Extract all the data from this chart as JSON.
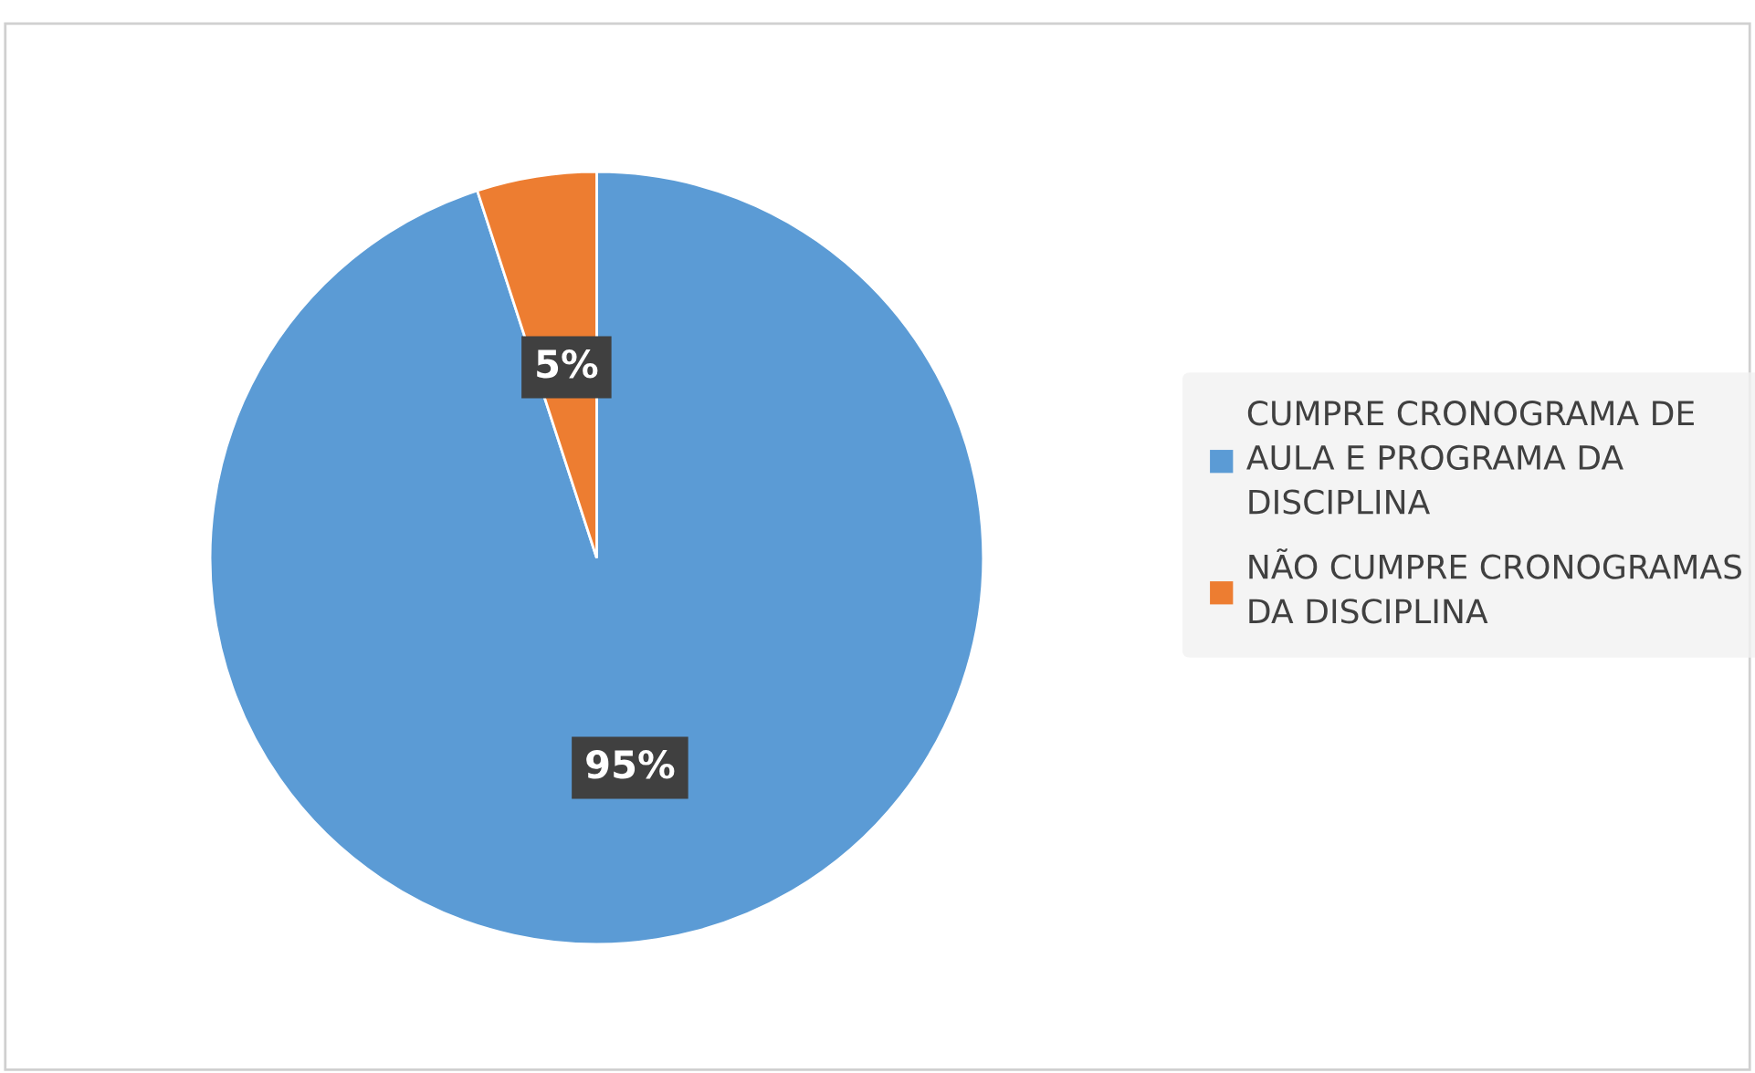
{
  "chart_data": {
    "type": "pie",
    "categories": [
      "CUMPRE CRONOGRAMA DE AULA E PROGRAMA DA DISCIPLINA",
      "NÃO CUMPRE CRONOGRAMAS DA DISCIPLINA"
    ],
    "values": [
      95,
      5
    ],
    "colors": [
      "#5b9bd5",
      "#ed7d31"
    ],
    "value_labels": [
      "95%",
      "5%"
    ],
    "legend": "right"
  }
}
